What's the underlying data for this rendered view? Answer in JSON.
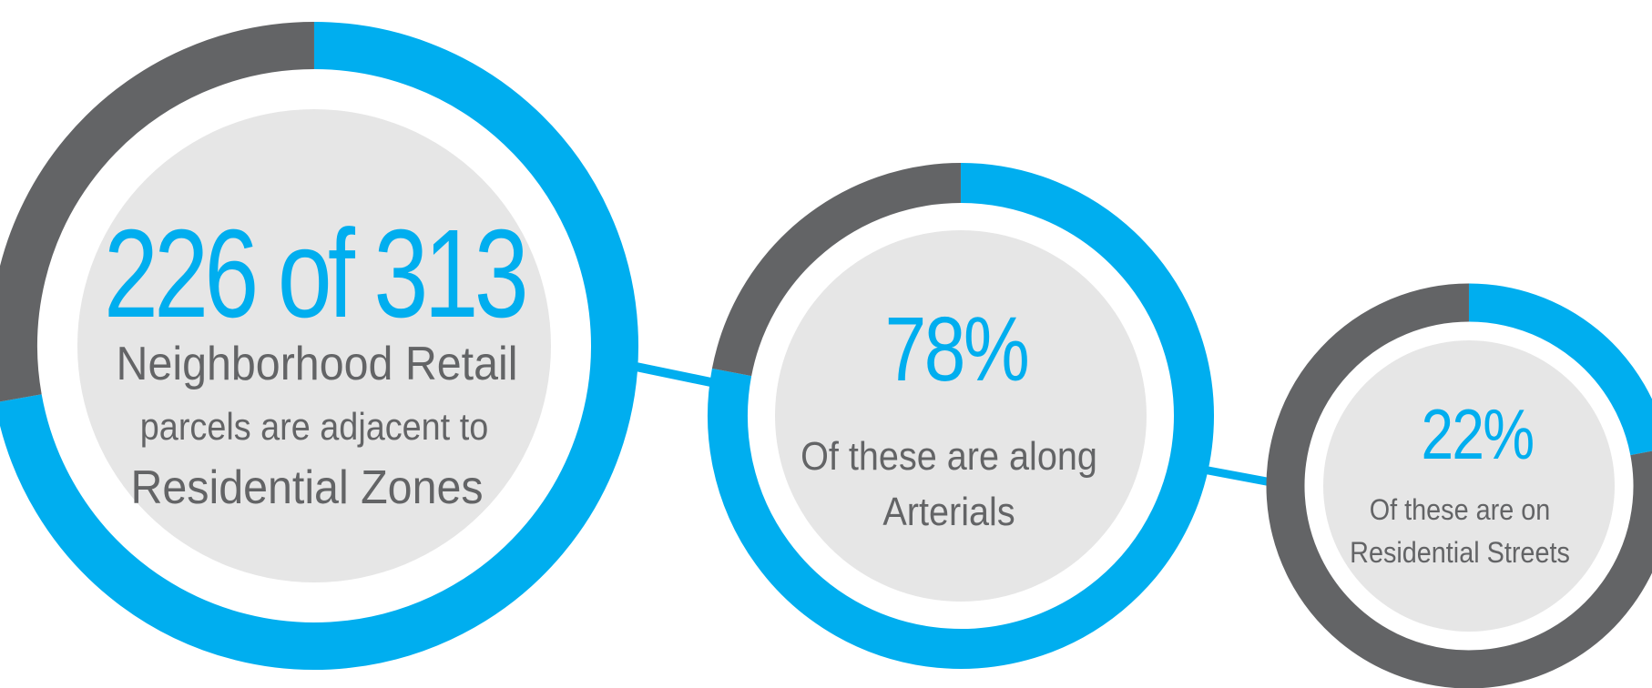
{
  "colors": {
    "blue": "#00aeef",
    "grey": "#636466",
    "fill": "#e6e6e6",
    "background": "#ffffff"
  },
  "chart_data": [
    {
      "type": "pie",
      "style": "donut-ring",
      "headline": "226 of 313",
      "value": 226,
      "total": 313,
      "fraction": 0.722,
      "lines": [
        "Neighborhood Retail",
        "parcels are adjacent to",
        "Residential Zones"
      ]
    },
    {
      "type": "pie",
      "style": "donut-ring",
      "headline": "78%",
      "fraction": 0.78,
      "lines": [
        "Of these are along",
        "Arterials"
      ]
    },
    {
      "type": "pie",
      "style": "donut-ring",
      "headline": "22%",
      "fraction": 0.22,
      "lines": [
        "Of these are on",
        "Residential Streets"
      ]
    }
  ]
}
